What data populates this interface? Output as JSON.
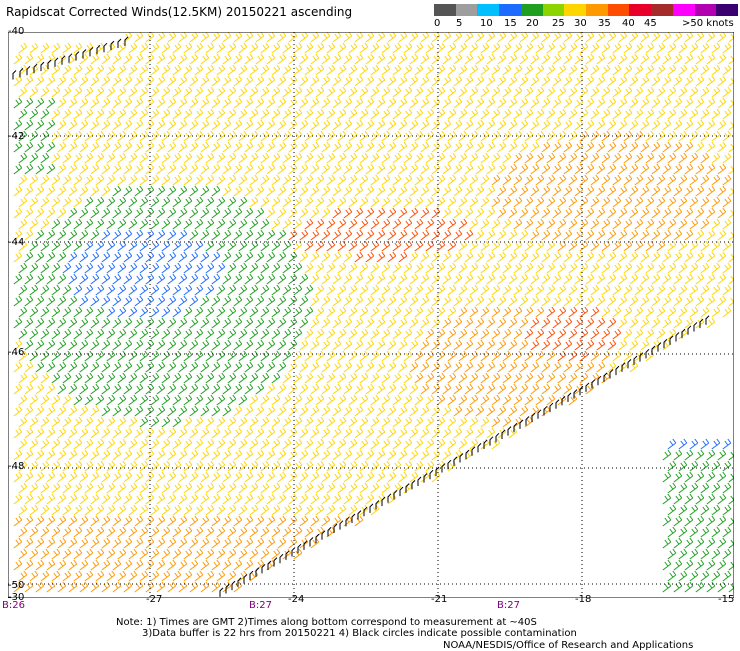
{
  "title": "Rapidscat Corrected Winds(12.5KM) 20150221 ascending",
  "legend": {
    "colors": [
      "#555555",
      "#9e9e9e",
      "#00bfff",
      "#1e6bff",
      "#1f9e1f",
      "#8cd400",
      "#ffd500",
      "#ff9900",
      "#ff4d00",
      "#e8002a",
      "#a52a2a",
      "#ff00ff",
      "#b000b0",
      "#3a0070"
    ],
    "labels": [
      "0",
      "5",
      "10",
      "15",
      "20",
      "25",
      "30",
      "35",
      "40",
      "45",
      ">50 knots"
    ]
  },
  "axes": {
    "lat_labels": [
      "-40",
      "-42",
      "-44",
      "-46",
      "-48",
      "-50"
    ],
    "lon_labels": [
      "-27",
      "-24",
      "-21",
      "-18"
    ],
    "corner_left": "-30",
    "corner_right": "-15"
  },
  "times": [
    "B:26",
    "B:27",
    "B:27"
  ],
  "notes": [
    "Note: 1) Times are GMT 2)Times along bottom correspond to measurement at ~40S",
    "3)Data buffer is 22 hrs from 20150221 4) Black circles indicate possible contamination"
  ],
  "credit": "NOAA/NESDIS/Office of Research and Applications",
  "map_colors": {
    "yellow": "#ffd500",
    "orange": "#ff9900",
    "red": "#ff4d00",
    "green": "#1f9e1f",
    "blue": "#1e6bff",
    "black": "#000000"
  }
}
